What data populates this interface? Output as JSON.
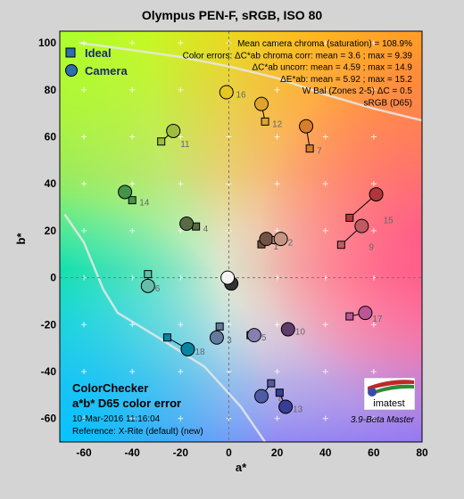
{
  "chart_data": {
    "type": "scatter",
    "title": "Olympus PEN-F, sRGB, ISO 80",
    "xlabel": "a*",
    "ylabel": "b*",
    "xlim": [
      -70,
      80
    ],
    "ylim": [
      -70,
      105
    ],
    "xticks": [
      -60,
      -40,
      -20,
      0,
      20,
      40,
      60,
      80
    ],
    "yticks": [
      -60,
      -40,
      -20,
      0,
      20,
      40,
      60,
      80,
      100
    ],
    "grid": true,
    "legend": {
      "placement": "top-left",
      "entries": [
        "Ideal",
        "Camera"
      ]
    },
    "info_lines": [
      "Mean camera chroma (saturation) = 108.9%",
      "Color errors: ΔC*ab chroma corr:  mean = 3.6 ;  max = 9.39",
      "ΔC*ab uncorr:  mean = 4.59 ;  max = 14.9",
      "ΔE*ab:  mean = 5.92 ;  max = 15.2",
      "W Bal (Zones 2-5) ΔC = 0.5",
      "sRGB (D65)"
    ],
    "bottom_left": {
      "line1": "ColorChecker",
      "line2": "a*b* D65 color error",
      "date": "10-Mar-2016 11:16:04",
      "reference": "Reference: X-Rite (default) (new)"
    },
    "logo_text": "imatest",
    "version": "3.9-Beta  Master",
    "patches": [
      {
        "label": "1",
        "ideal": [
          13.5,
          14.2
        ],
        "camera": [
          15.5,
          16.5
        ],
        "color": "#735244"
      },
      {
        "label": "2",
        "ideal": [
          19.4,
          16.0
        ],
        "camera": [
          21.5,
          16.5
        ],
        "color": "#c29682"
      },
      {
        "label": "3",
        "ideal": [
          -3.8,
          -20.8
        ],
        "camera": [
          -5.0,
          -25.5
        ],
        "color": "#627a9d"
      },
      {
        "label": "4",
        "ideal": [
          -13.6,
          21.8
        ],
        "camera": [
          -17.5,
          23.0
        ],
        "color": "#576c43"
      },
      {
        "label": "5",
        "ideal": [
          9.0,
          -24.5
        ],
        "camera": [
          10.5,
          -24.5
        ],
        "color": "#8580b1"
      },
      {
        "label": "6",
        "ideal": [
          -33.5,
          1.5
        ],
        "camera": [
          -33.5,
          -3.5
        ],
        "color": "#67bdaa"
      },
      {
        "label": "7",
        "ideal": [
          33.5,
          55.0
        ],
        "camera": [
          32.0,
          64.5
        ],
        "color": "#d67e2c"
      },
      {
        "label": "8",
        "ideal": [
          17.5,
          -45.0
        ],
        "camera": [
          13.5,
          -50.5
        ],
        "color": "#505ba6"
      },
      {
        "label": "9",
        "ideal": [
          46.5,
          14.0
        ],
        "camera": [
          55.0,
          22.0
        ],
        "color": "#c15a63"
      },
      {
        "label": "10",
        "ideal": [
          24.5,
          -22.0
        ],
        "camera": [
          24.5,
          -22.0
        ],
        "color": "#5e3c6c"
      },
      {
        "label": "11",
        "ideal": [
          -28.0,
          58.0
        ],
        "camera": [
          -23.0,
          62.5
        ],
        "color": "#9dbc40"
      },
      {
        "label": "12",
        "ideal": [
          15.0,
          66.5
        ],
        "camera": [
          13.5,
          74.0
        ],
        "color": "#e0a32e"
      },
      {
        "label": "13",
        "ideal": [
          21.0,
          -49.0
        ],
        "camera": [
          23.5,
          -55.0
        ],
        "color": "#383d96"
      },
      {
        "label": "14",
        "ideal": [
          -40.0,
          33.0
        ],
        "camera": [
          -43.0,
          36.5
        ],
        "color": "#469449"
      },
      {
        "label": "15",
        "ideal": [
          50.0,
          25.5
        ],
        "camera": [
          61.0,
          35.5
        ],
        "color": "#af363c"
      },
      {
        "label": "16",
        "ideal": [
          0.0,
          79.0
        ],
        "camera": [
          -1.0,
          79.0
        ],
        "color": "#e7c71f"
      },
      {
        "label": "17",
        "ideal": [
          50.0,
          -16.5
        ],
        "camera": [
          56.5,
          -15.0
        ],
        "color": "#bb5695"
      },
      {
        "label": "18",
        "ideal": [
          -25.5,
          -25.5
        ],
        "camera": [
          -17.0,
          -30.5
        ],
        "color": "#0885a1"
      },
      {
        "label": "",
        "ideal": [
          0.0,
          0.0
        ],
        "camera": [
          1.0,
          -2.5
        ],
        "color": "#333333"
      },
      {
        "label": "",
        "ideal": [
          0.0,
          0.0
        ],
        "camera": [
          -0.5,
          0.0
        ],
        "color": "#f4f4f4"
      }
    ]
  }
}
